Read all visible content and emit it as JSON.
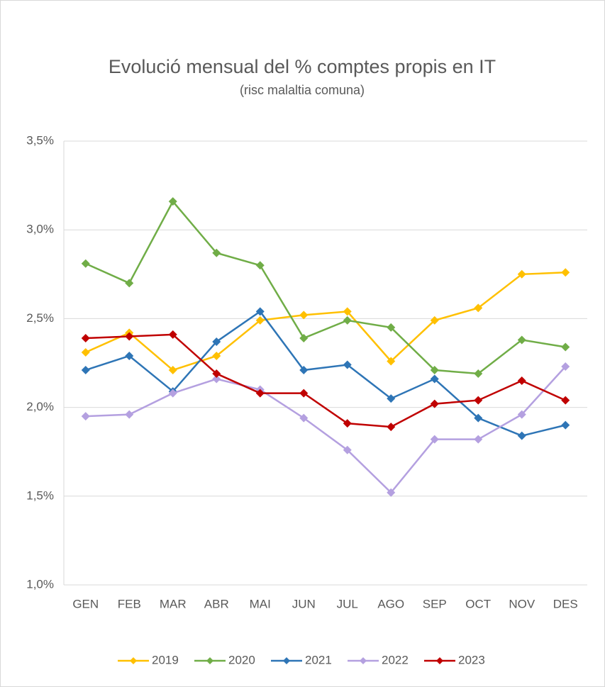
{
  "chart_data": {
    "type": "line",
    "title": "Evolució mensual del % comptes propis en IT",
    "subtitle": "(risc malaltia comuna)",
    "categories": [
      "GEN",
      "FEB",
      "MAR",
      "ABR",
      "MAI",
      "JUN",
      "JUL",
      "AGO",
      "SEP",
      "OCT",
      "NOV",
      "DES"
    ],
    "series": [
      {
        "name": "2019",
        "color": "#ffc000",
        "values": [
          2.31,
          2.42,
          2.21,
          2.29,
          2.49,
          2.52,
          2.54,
          2.26,
          2.49,
          2.56,
          2.75,
          2.76
        ]
      },
      {
        "name": "2020",
        "color": "#70ad47",
        "values": [
          2.81,
          2.7,
          3.16,
          2.87,
          2.8,
          2.39,
          2.49,
          2.45,
          2.21,
          2.19,
          2.38,
          2.34
        ]
      },
      {
        "name": "2021",
        "color": "#2e75b6",
        "values": [
          2.21,
          2.29,
          2.09,
          2.37,
          2.54,
          2.21,
          2.24,
          2.05,
          2.16,
          1.94,
          1.84,
          1.9
        ]
      },
      {
        "name": "2022",
        "color": "#b4a0e0",
        "values": [
          1.95,
          1.96,
          2.08,
          2.16,
          2.1,
          1.94,
          1.76,
          1.52,
          1.82,
          1.82,
          1.96,
          2.23
        ]
      },
      {
        "name": "2023",
        "color": "#c00000",
        "values": [
          2.39,
          2.4,
          2.41,
          2.19,
          2.08,
          2.08,
          1.91,
          1.89,
          2.02,
          2.04,
          2.15,
          2.04
        ]
      }
    ],
    "ylim": [
      1.0,
      3.5
    ],
    "yticks": [
      {
        "value": 1.0,
        "label": "1,0%"
      },
      {
        "value": 1.5,
        "label": "1,5%"
      },
      {
        "value": 2.0,
        "label": "2,0%"
      },
      {
        "value": 2.5,
        "label": "2,5%"
      },
      {
        "value": 3.0,
        "label": "3,0%"
      },
      {
        "value": 3.5,
        "label": "3,5%"
      }
    ],
    "grid": true,
    "legend": "bottom"
  }
}
